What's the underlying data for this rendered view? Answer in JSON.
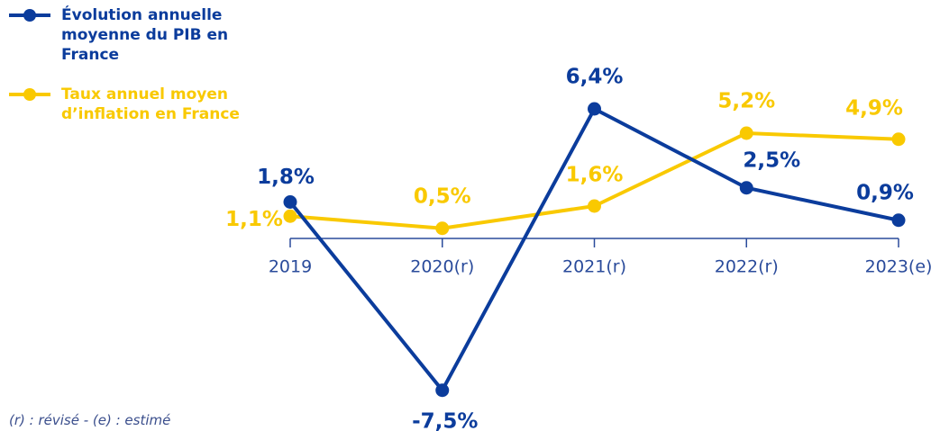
{
  "chart_data": {
    "type": "line",
    "categories": [
      "2019",
      "2020(r)",
      "2021(r)",
      "2022(r)",
      "2023(e)"
    ],
    "series": [
      {
        "name": "Évolution annuelle moyenne du PIB en France",
        "color": "#0b3c9c",
        "values": [
          1.8,
          -7.5,
          6.4,
          2.5,
          0.9
        ],
        "value_labels": [
          "1,8%",
          "-7,5%",
          "6,4%",
          "2,5%",
          "0,9%"
        ]
      },
      {
        "name": "Taux annuel moyen d’inflation en France",
        "color": "#f9c900",
        "values": [
          1.1,
          0.5,
          1.6,
          5.2,
          4.9
        ],
        "value_labels": [
          "1,1%",
          "0,5%",
          "1,6%",
          "5,2%",
          "4,9%"
        ]
      }
    ],
    "note": "(r) : révisé - (e) : estimé"
  }
}
